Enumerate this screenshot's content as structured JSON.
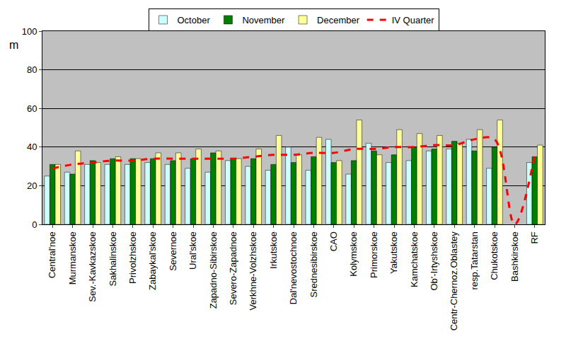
{
  "chart_data": {
    "type": "bar",
    "ylabel": "m",
    "categories": [
      "Central'noe",
      "Murmanskoe",
      "Sev.-Kavkazskoe",
      "Sakhalinskoe",
      "Privolzhskoe",
      "Zabaykal'skoe",
      "Severnoe",
      "Ural'skoe",
      "Zapadno-Sibirskoe",
      "Severo-Zapadnoe",
      "Verkhne-Volzhskoe",
      "Irkutskoe",
      "Dal'nevostochnoe",
      "Srednesibirskoe",
      "CAO",
      "Kolymskoe",
      "Primorskoe",
      "Yakutskoe",
      "Kamchatskoe",
      "Ob'-Irtyshskoe",
      "Centr-Chernoz.Oblastey",
      "resp.Tatarstan",
      "Chukotskoe",
      "Bashkirskoe",
      "RF"
    ],
    "series": [
      {
        "name": "October",
        "type": "bar",
        "color": "#ccffff",
        "values": [
          25,
          27,
          31,
          31,
          31,
          32,
          31,
          29,
          27,
          33,
          30,
          28,
          40,
          28,
          44,
          26,
          42,
          32,
          33,
          38,
          39,
          44,
          29,
          null,
          32
        ]
      },
      {
        "name": "November",
        "type": "bar",
        "color": "#008000",
        "values": [
          31,
          26,
          33,
          34,
          34,
          34,
          33,
          34,
          37,
          34,
          34,
          31,
          32,
          35,
          32,
          33,
          38,
          36,
          40,
          39,
          43,
          38,
          40,
          null,
          35
        ]
      },
      {
        "name": "December",
        "type": "bar",
        "color": "#ffff99",
        "values": [
          31,
          38,
          32,
          35,
          34,
          37,
          37,
          39,
          38,
          34,
          39,
          46,
          36,
          45,
          33,
          54,
          36,
          49,
          47,
          46,
          42,
          49,
          54,
          null,
          41
        ]
      },
      {
        "name": "IV Quarter",
        "type": "line",
        "color": "#ff0000",
        "line_style": "dashed",
        "values": [
          29,
          31,
          32,
          33,
          33,
          34,
          34,
          34,
          34,
          34,
          35,
          36,
          36,
          37,
          37,
          39,
          39,
          40,
          40,
          41,
          41,
          44,
          44,
          0,
          36
        ]
      }
    ],
    "ylim": [
      0,
      100
    ],
    "yticks": [
      0,
      20,
      40,
      60,
      80,
      100
    ],
    "grid": true,
    "legend": "top"
  }
}
